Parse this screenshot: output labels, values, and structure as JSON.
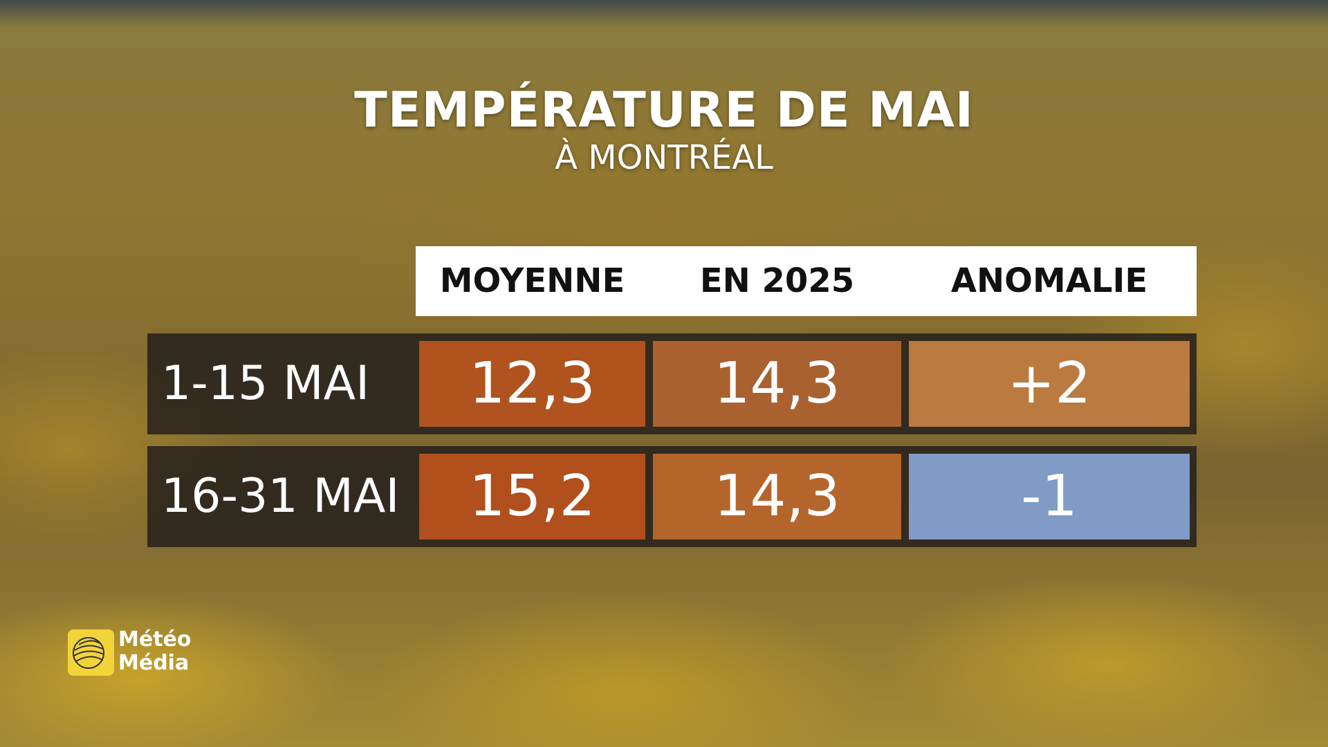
{
  "header": {
    "title": "TEMPÉRATURE DE MAI",
    "subtitle": "À MONTRÉAL"
  },
  "table": {
    "columns": [
      "MOYENNE",
      "EN 2025",
      "ANOMALIE"
    ],
    "rows": [
      [
        "1-15 MAI",
        "12,3",
        "14,3",
        "+2"
      ],
      [
        "16-31 MAI",
        "15,2",
        "14,3",
        "-1"
      ]
    ]
  },
  "logo": {
    "lines": [
      "Météo",
      "Média"
    ]
  }
}
